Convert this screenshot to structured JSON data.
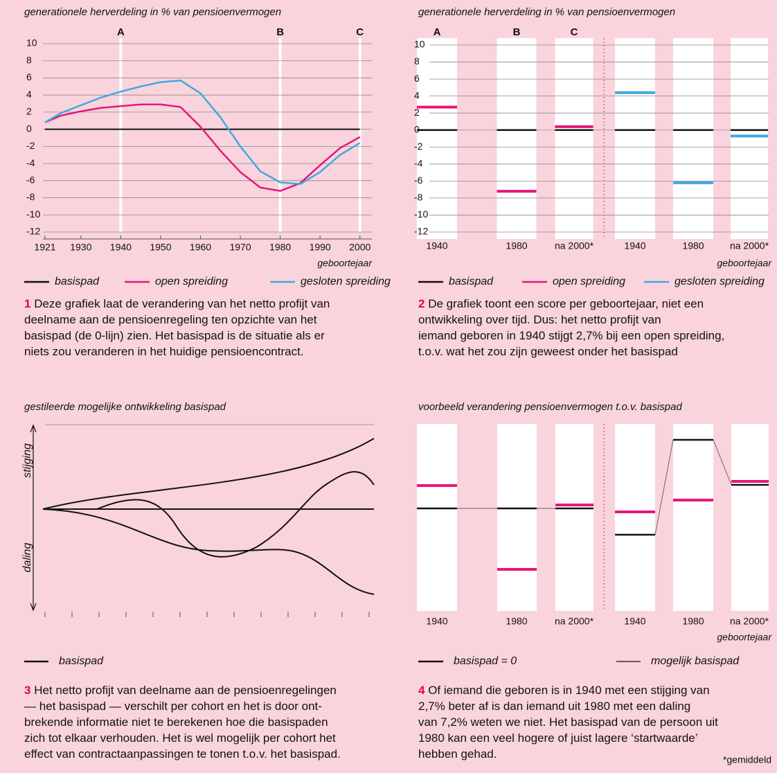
{
  "chart_data": [
    {
      "type": "line",
      "title": "generationele herverdeling in % van pensioenvermogen",
      "x": [
        1921,
        1925,
        1930,
        1935,
        1940,
        1945,
        1950,
        1955,
        1960,
        1965,
        1970,
        1975,
        1980,
        1985,
        1990,
        1995,
        2000
      ],
      "series": [
        {
          "name": "basispad",
          "color": "#111111",
          "values": [
            0,
            0,
            0,
            0,
            0,
            0,
            0,
            0,
            0,
            0,
            0,
            0,
            0,
            0,
            0,
            0,
            0
          ]
        },
        {
          "name": "open spreiding",
          "color": "#e5177b",
          "values": [
            0.8,
            1.6,
            2.1,
            2.5,
            2.7,
            2.9,
            2.9,
            2.6,
            0.3,
            -2.5,
            -5.0,
            -6.8,
            -7.2,
            -6.3,
            -4.2,
            -2.2,
            -0.9
          ]
        },
        {
          "name": "gesloten spreiding",
          "color": "#3fa9e0",
          "values": [
            0.8,
            1.9,
            2.8,
            3.7,
            4.4,
            5.0,
            5.5,
            5.7,
            4.2,
            1.4,
            -2.0,
            -4.9,
            -6.2,
            -6.4,
            -5.0,
            -3.0,
            -1.6
          ]
        }
      ],
      "xlim": [
        1921,
        2003
      ],
      "xticks": [
        1921,
        1930,
        1940,
        1950,
        1960,
        1970,
        1980,
        1990,
        2000
      ],
      "ylim": [
        -12,
        10
      ],
      "yticks": [
        -12,
        -10,
        -8,
        -6,
        -4,
        -2,
        0,
        2,
        4,
        6,
        8,
        10
      ],
      "x_label": "geboortejaar",
      "grid": true,
      "markers": [
        {
          "label": "A",
          "x": 1940
        },
        {
          "label": "B",
          "x": 1980
        },
        {
          "label": "C",
          "x": 2000
        }
      ]
    },
    {
      "type": "level",
      "title": "generationele herverdeling in % van pensioenvermogen",
      "categories": [
        "1940",
        "1980",
        "na 2000*",
        "1940",
        "1980",
        "na 2000*"
      ],
      "column_labels": [
        "A",
        "B",
        "C",
        null,
        null,
        null
      ],
      "series": [
        {
          "name": "basispad",
          "color": "#111111",
          "values": [
            0,
            0,
            0,
            0,
            0,
            0
          ]
        },
        {
          "name": "open spreiding",
          "color": "#e5177b",
          "values": [
            2.7,
            -7.2,
            0.4,
            null,
            null,
            null
          ]
        },
        {
          "name": "gesloten spreiding",
          "color": "#3fa9e0",
          "values": [
            null,
            null,
            null,
            4.4,
            -6.2,
            -0.7
          ]
        }
      ],
      "ylim": [
        -12,
        10
      ],
      "yticks": [
        -12,
        -10,
        -8,
        -6,
        -4,
        -2,
        0,
        2,
        4,
        6,
        8,
        10
      ],
      "x_label": "geboortejaar",
      "grid": true
    }
  ],
  "diagram_3": {
    "title": "gestileerde mogelijke ontwikkeling basispad",
    "up": "stijging",
    "down": "daling",
    "legend": "basispad"
  },
  "diagram_4": {
    "title": "voorbeeld verandering pensioenvermogen t.o.v. basispad",
    "categories": [
      "1940",
      "1980",
      "na 2000*",
      "1940",
      "1980",
      "na 2000*"
    ],
    "x_label": "geboortejaar",
    "legend": [
      "basispad = 0",
      "mogelijk basispad"
    ]
  },
  "captions": [
    {
      "number": "1",
      "lines": [
        "Deze grafiek laat de verandering van het netto profijt van",
        "deelname aan de pensioenregeling ten opzichte van het",
        "basispad (de 0-lijn) zien. Het basispad is de situatie als er",
        "niets zou veranderen in het huidige pensioencontract."
      ]
    },
    {
      "number": "2",
      "lines": [
        "De grafiek toont een score per geboortejaar, niet een",
        "ontwikkeling over tijd. Dus: het netto profijt van",
        "iemand geboren in 1940 stijgt 2,7% bij een open spreiding,",
        "t.o.v. wat het zou zijn geweest onder het basispad"
      ]
    },
    {
      "number": "3",
      "lines": [
        "Het netto profijt van deelname aan de pensioenregelingen",
        "— het basispad — verschilt per cohort en het is door ont-",
        "brekende informatie niet te berekenen hoe die basispaden",
        "zich tot elkaar verhouden. Het is wel mogelijk per cohort het",
        "effect van contractaanpassingen te tonen t.o.v. het basispad."
      ]
    },
    {
      "number": "4",
      "lines": [
        "Of iemand die geboren is in 1940 met een stijging van",
        "2,7% beter af is dan iemand uit 1980 met een daling",
        "van 7,2% weten we niet. Het basispad van de persoon uit",
        "1980 kan een veel hogere of juist lagere ‘startwaarde’",
        "hebben gehad."
      ]
    }
  ],
  "footnote": "*gemiddeld"
}
